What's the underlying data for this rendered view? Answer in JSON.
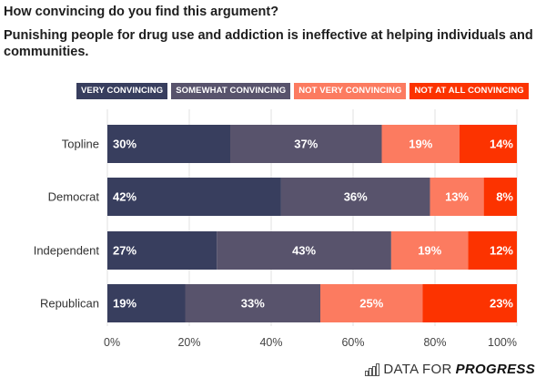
{
  "chart_data": {
    "type": "bar",
    "orientation": "horizontal",
    "stacked": true,
    "title": "How convincing do you find this argument?",
    "subtitle": "Punishing people for drug use and addiction is ineffective at helping individuals and communities.",
    "categories": [
      "Topline",
      "Democrat",
      "Independent",
      "Republican"
    ],
    "series": [
      {
        "name": "VERY CONVINCING",
        "color": "#383e5e",
        "values": [
          30,
          42,
          27,
          19
        ]
      },
      {
        "name": "SOMEWHAT CONVINCING",
        "color": "#58536c",
        "values": [
          37,
          36,
          43,
          33
        ]
      },
      {
        "name": "NOT VERY CONVINCING",
        "color": "#fc7b60",
        "values": [
          19,
          13,
          19,
          25
        ]
      },
      {
        "name": "NOT AT ALL CONVINCING",
        "color": "#fc3300",
        "values": [
          14,
          8,
          12,
          23
        ]
      }
    ],
    "xlim": [
      0,
      100
    ],
    "xticks": [
      0,
      20,
      40,
      60,
      80,
      100
    ],
    "xtick_labels": [
      "0%",
      "20%",
      "40%",
      "60%",
      "80%",
      "100%"
    ],
    "xlabel": "",
    "ylabel": "",
    "grid": true,
    "legend_position": "top-right",
    "value_suffix": "%"
  },
  "branding": {
    "logo_icon": "bar-chart-icon",
    "name_light": "DATA FOR",
    "name_bold": "PROGRESS"
  }
}
